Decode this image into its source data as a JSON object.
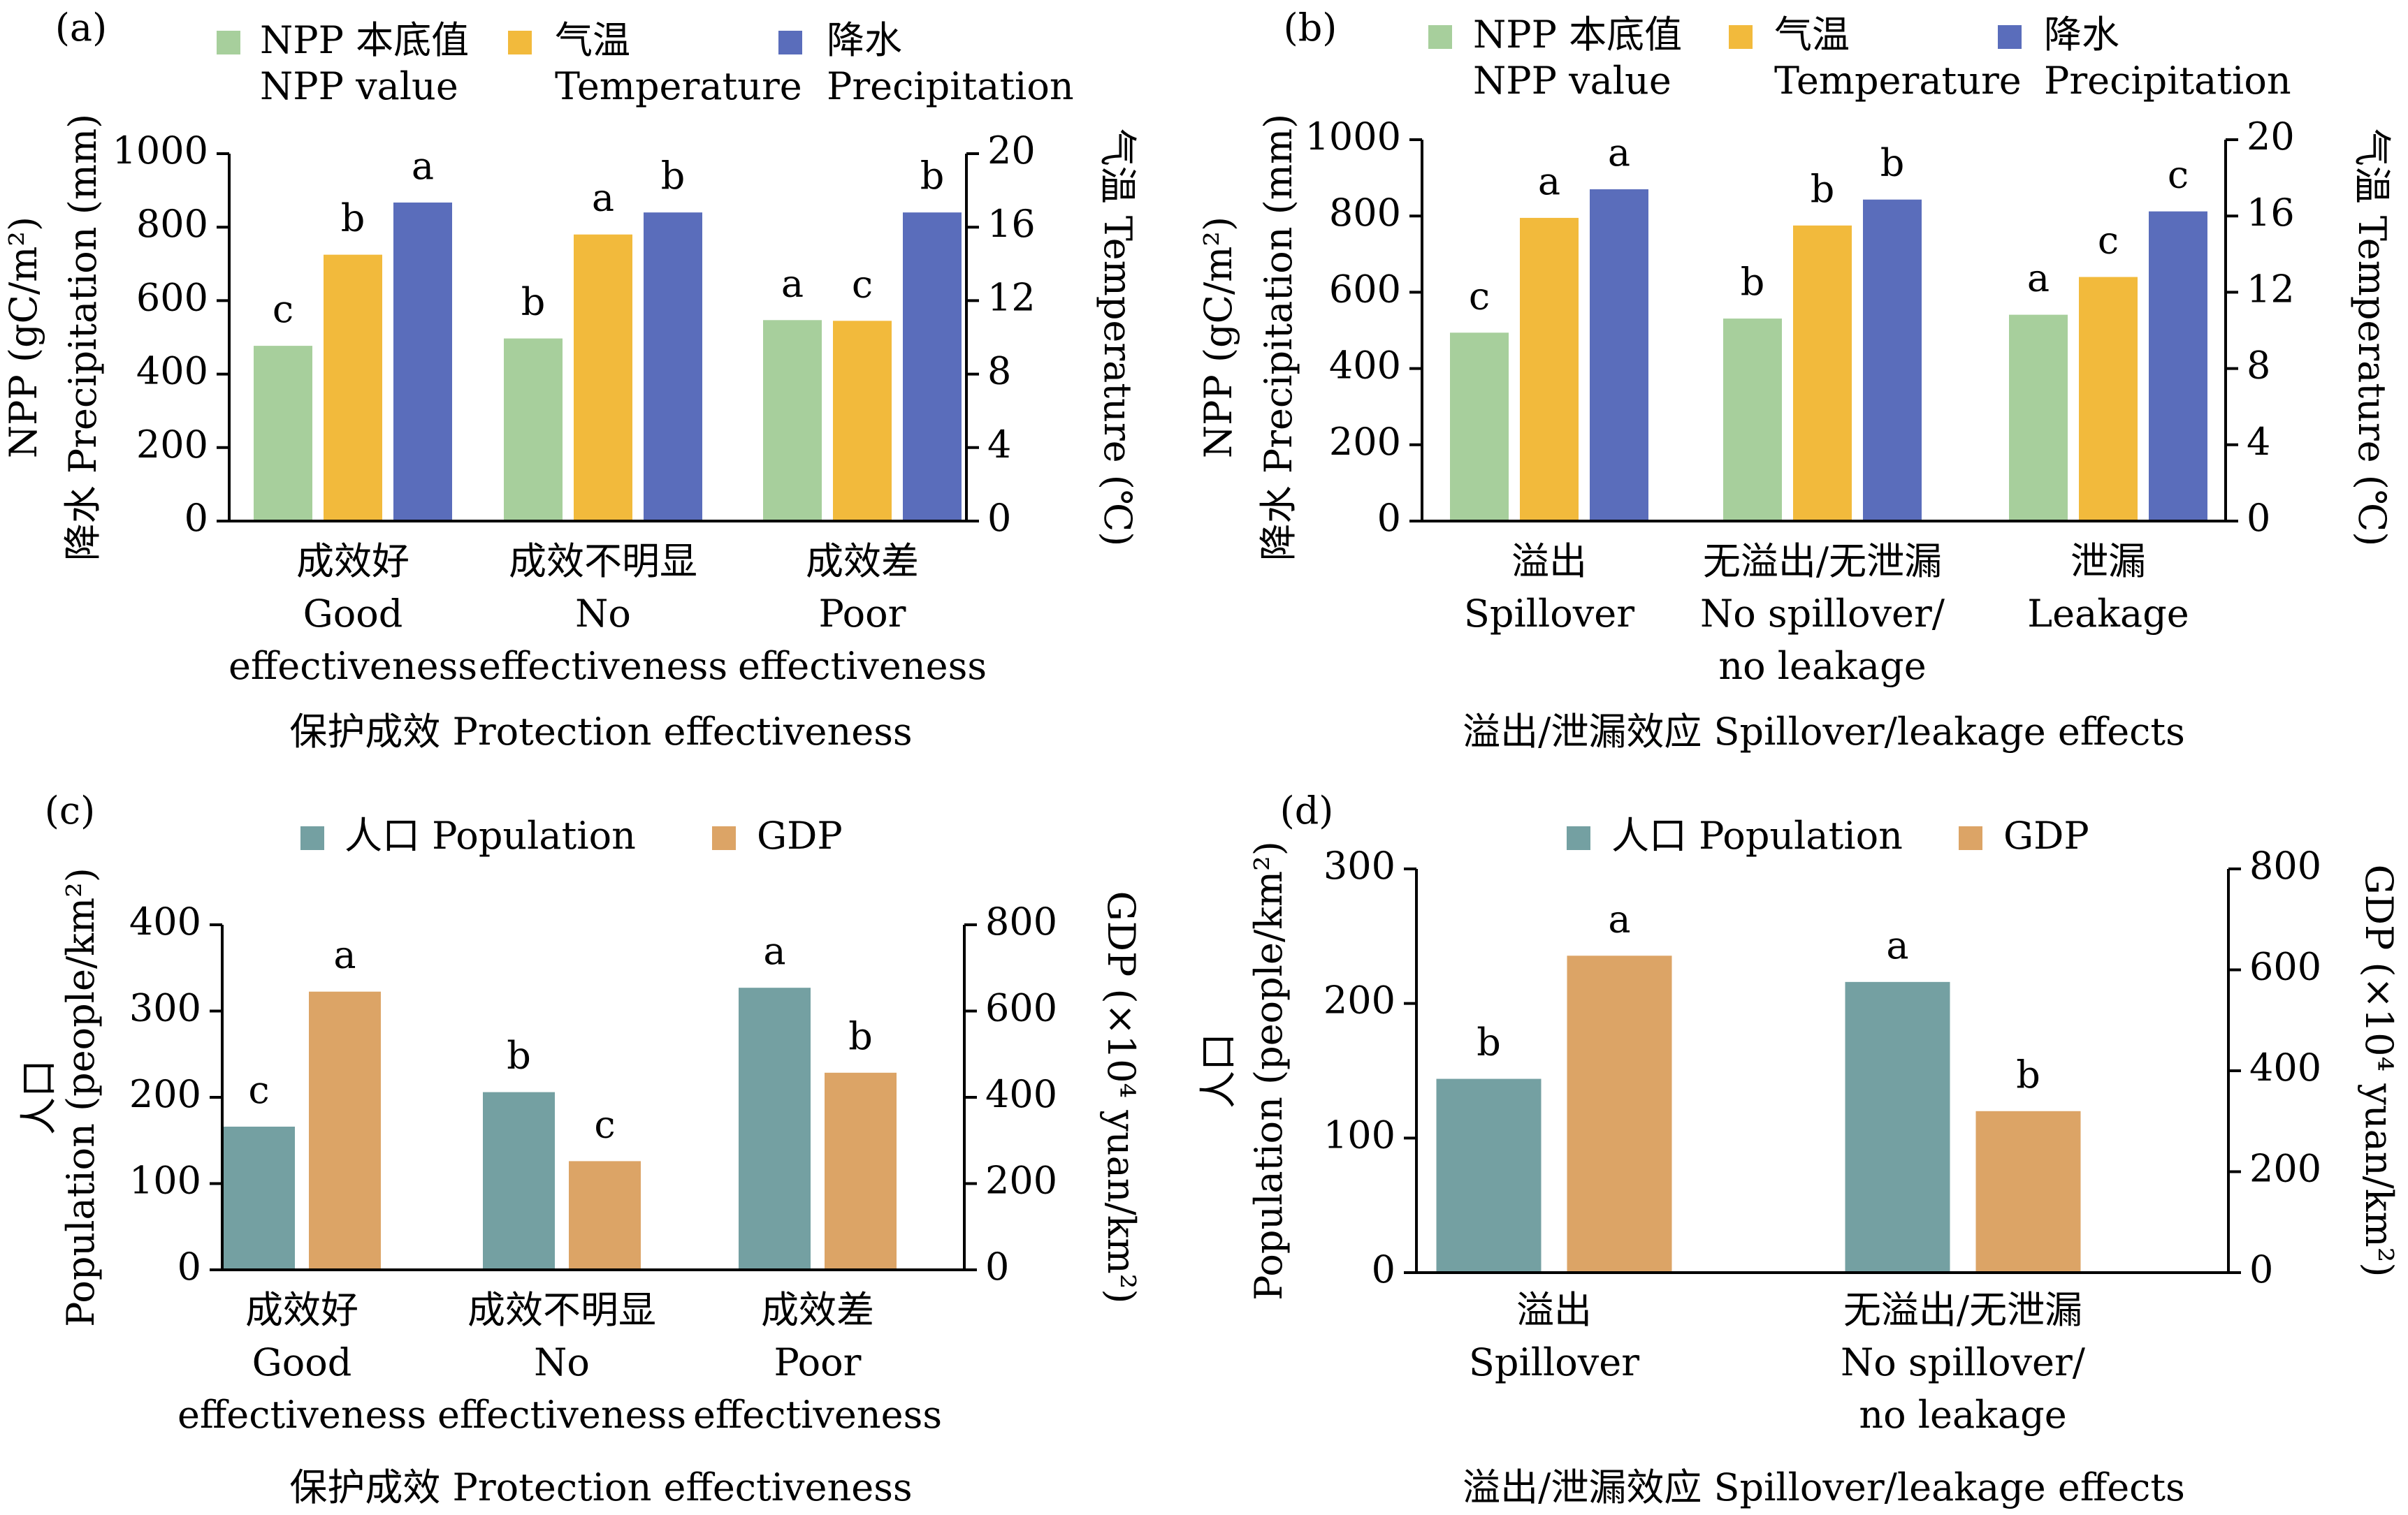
{
  "chart_data": [
    {
      "panel_label": "(a)",
      "type": "bar",
      "categories": [
        [
          "成效好",
          "Good",
          "effectiveness"
        ],
        [
          "成效不明显",
          "No",
          "effectiveness"
        ],
        [
          "成效差",
          "Poor",
          "effectiveness"
        ]
      ],
      "xlabel": "保护成效 Protection effectiveness",
      "ylabel": [
        "NPP (gC/m²)",
        "降水 Precipitation (mm)"
      ],
      "y2label": "气温 Temperature (℃)",
      "ylim": [
        0,
        1000
      ],
      "yticks": [
        "0",
        "200",
        "400",
        "600",
        "800",
        "1000"
      ],
      "y2lim": [
        0,
        20
      ],
      "y2ticks": [
        "0",
        "4",
        "8",
        "12",
        "16",
        "20"
      ],
      "series": [
        {
          "name": [
            "NPP 本底值",
            "NPP value"
          ],
          "color": "#a7cf9c",
          "axis": "left",
          "values": [
            477,
            497,
            547
          ],
          "labels": [
            "c",
            "b",
            "a"
          ]
        },
        {
          "name": [
            "气温",
            "Temperature"
          ],
          "color": "#f2ba3c",
          "axis": "right",
          "values": [
            14.5,
            15.6,
            10.9
          ],
          "labels": [
            "b",
            "a",
            "c"
          ]
        },
        {
          "name": [
            "降水",
            "Precipitation"
          ],
          "color": "#5a6dbb",
          "axis": "left",
          "values": [
            867,
            840,
            840
          ],
          "labels": [
            "a",
            "b",
            "b"
          ]
        }
      ]
    },
    {
      "panel_label": "(b)",
      "type": "bar",
      "categories": [
        [
          "溢出",
          "Spillover"
        ],
        [
          "无溢出/无泄漏",
          "No spillover/",
          "no leakage"
        ],
        [
          "泄漏",
          "Leakage"
        ]
      ],
      "xlabel": "溢出/泄漏效应 Spillover/leakage effects",
      "ylabel": [
        "NPP (gC/m²)",
        "降水 Precipitation (mm)"
      ],
      "y2label": "气温 Temperature (℃)",
      "ylim": [
        0,
        1000
      ],
      "yticks": [
        "0",
        "200",
        "400",
        "600",
        "800",
        "1000"
      ],
      "y2lim": [
        0,
        20
      ],
      "y2ticks": [
        "0",
        "4",
        "8",
        "12",
        "16",
        "20"
      ],
      "series": [
        {
          "name": [
            "NPP 本底值",
            "NPP value"
          ],
          "color": "#a7cf9c",
          "axis": "left",
          "values": [
            494,
            531,
            541
          ],
          "labels": [
            "c",
            "b",
            "a"
          ]
        },
        {
          "name": [
            "气温",
            "Temperature"
          ],
          "color": "#f2ba3c",
          "axis": "right",
          "values": [
            15.9,
            15.5,
            12.8
          ],
          "labels": [
            "a",
            "b",
            "c"
          ]
        },
        {
          "name": [
            "降水",
            "Precipitation"
          ],
          "color": "#5a6dbb",
          "axis": "left",
          "values": [
            870,
            843,
            812
          ],
          "labels": [
            "a",
            "b",
            "c"
          ]
        }
      ]
    },
    {
      "panel_label": "(c)",
      "type": "bar",
      "categories": [
        [
          "成效好",
          "Good",
          "effectiveness"
        ],
        [
          "成效不明显",
          "No",
          "effectiveness"
        ],
        [
          "成效差",
          "Poor",
          "effectiveness"
        ]
      ],
      "xlabel": "保护成效 Protection effectiveness",
      "ylabel": [
        "人口",
        "Population (people/km²)"
      ],
      "y2label": "GDP (×10⁴ yuan/km²)",
      "ylim": [
        0,
        400
      ],
      "yticks": [
        "0",
        "100",
        "200",
        "300",
        "400"
      ],
      "y2lim": [
        0,
        800
      ],
      "y2ticks": [
        "0",
        "200",
        "400",
        "600",
        "800"
      ],
      "series": [
        {
          "name": [
            "人口 Population"
          ],
          "color": "#74a0a2",
          "axis": "left",
          "values": [
            166,
            206,
            327
          ],
          "labels": [
            "c",
            "b",
            "a"
          ]
        },
        {
          "name": [
            "GDP"
          ],
          "color": "#dca466",
          "axis": "right",
          "values": [
            645,
            252,
            457
          ],
          "labels": [
            "a",
            "c",
            "b"
          ]
        }
      ]
    },
    {
      "panel_label": "(d)",
      "type": "bar",
      "categories": [
        [
          "溢出",
          "Spillover"
        ],
        [
          "无溢出/无泄漏",
          "No spillover/",
          "no leakage"
        ]
      ],
      "xlabel": "溢出/泄漏效应 Spillover/leakage effects",
      "ylabel": [
        "人口",
        "Population (people/km²)"
      ],
      "y2label": "GDP (×10⁴ yuan/km²)",
      "ylim": [
        0,
        300
      ],
      "yticks": [
        "0",
        "100",
        "200",
        "300"
      ],
      "y2lim": [
        0,
        800
      ],
      "y2ticks": [
        "0",
        "200",
        "400",
        "600",
        "800"
      ],
      "series": [
        {
          "name": [
            "人口 Population"
          ],
          "color": "#74a0a2",
          "axis": "left",
          "values": [
            144,
            216
          ],
          "labels": [
            "b",
            "a"
          ]
        },
        {
          "name": [
            "GDP"
          ],
          "color": "#dca466",
          "axis": "right",
          "values": [
            628,
            320
          ],
          "labels": [
            "a",
            "b"
          ]
        }
      ]
    }
  ]
}
